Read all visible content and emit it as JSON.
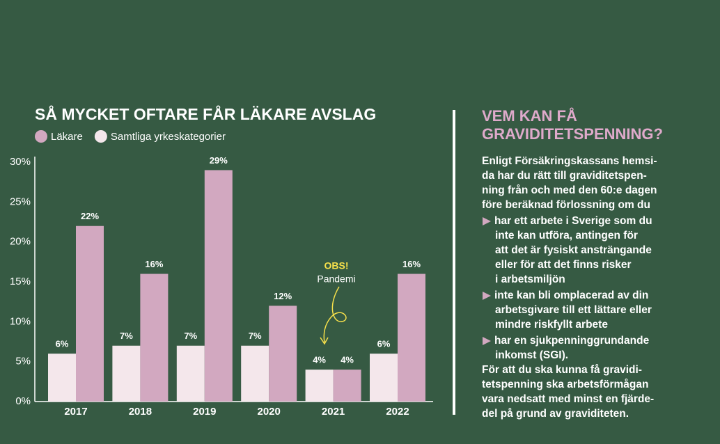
{
  "chart_data": {
    "type": "bar",
    "title": "SÅ MYCKET OFTARE FÅR LÄKARE AVSLAG",
    "categories": [
      "2017",
      "2018",
      "2019",
      "2020",
      "2021",
      "2022"
    ],
    "series": [
      {
        "name": "Läkare",
        "color": "#d2a8c0",
        "values": [
          22,
          16,
          29,
          12,
          4,
          16
        ],
        "value_labels": [
          "22%",
          "16%",
          "29%",
          "12%",
          "4%",
          "16%"
        ]
      },
      {
        "name": "Samtliga yrkeskategorier",
        "color": "#f4e7eb",
        "values": [
          6,
          7,
          7,
          7,
          4,
          6
        ],
        "value_labels": [
          "6%",
          "7%",
          "7%",
          "7%",
          "4%",
          "6%"
        ]
      }
    ],
    "ylim": [
      0,
      30
    ],
    "yticks": [
      {
        "value": 0,
        "label": "0%"
      },
      {
        "value": 5,
        "label": "5%"
      },
      {
        "value": 10,
        "label": "10%"
      },
      {
        "value": 15,
        "label": "15%"
      },
      {
        "value": 20,
        "label": "20%"
      },
      {
        "value": 25,
        "label": "25%"
      },
      {
        "value": 30,
        "label": "30%"
      }
    ],
    "annotations": [
      {
        "text": "OBS!",
        "color": "#f6e04b"
      },
      {
        "text": "Pandemi"
      }
    ]
  },
  "sidebar": {
    "title_lines": [
      "VEM KAN FÅ",
      "GRAVIDITETSPENNING?"
    ],
    "intro_lines": [
      "Enligt Försäkringskassans hemsi-",
      "da har du rätt till graviditetspen-",
      "ning från och med den 60:e dagen",
      "före beräknad förlossning om du"
    ],
    "bullets": [
      [
        "har ett arbete i Sverige som du",
        "inte kan utföra, antingen för",
        "att det är fysiskt ansträngande",
        "eller för att det finns risker",
        "i arbetsmiljön"
      ],
      [
        "inte kan bli omplacerad av din",
        "arbetsgivare till ett lättare eller",
        "mindre riskfyllt arbete"
      ],
      [
        "har en sjukpenninggrundande",
        "inkomst (SGI)."
      ]
    ],
    "closing_lines": [
      "För att du ska kunna få gravidi-",
      "tetspenning ska arbetsförmågan",
      "vara nedsatt med minst en fjärde-",
      "del på grund av graviditeten."
    ]
  }
}
